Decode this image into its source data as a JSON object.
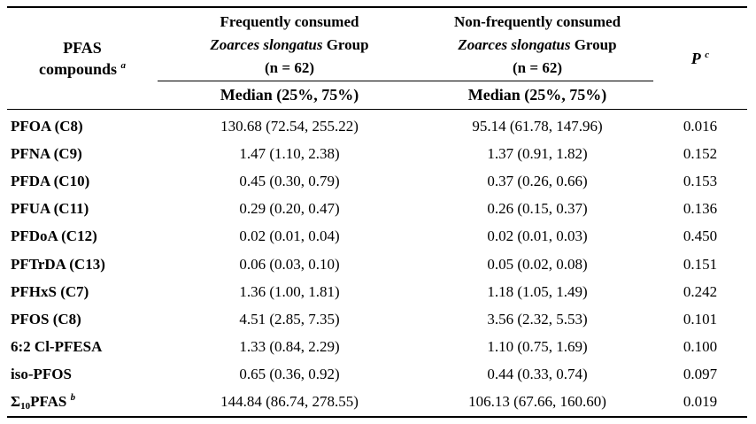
{
  "header": {
    "compounds_line1": "PFAS",
    "compounds_line2": "compounds",
    "compounds_sup": "a",
    "group1": {
      "line1": "Frequently consumed",
      "species": "Zoarces slongatus",
      "group_word": "Group",
      "n": "(n = 62)"
    },
    "group2": {
      "line1": "Non-frequently consumed",
      "species": "Zoarces slongatus",
      "group_word": "Group",
      "n": "(n = 62)"
    },
    "p_label": "P",
    "p_sup": "c",
    "median_label_1": "Median (25%, 75%)",
    "median_label_2": "Median (25%, 75%)"
  },
  "rows": [
    {
      "name": "PFOA (C8)",
      "freq": "130.68 (72.54, 255.22)",
      "nonfreq": "95.14 (61.78, 147.96)",
      "p": "0.016"
    },
    {
      "name": "PFNA (C9)",
      "freq": "1.47 (1.10, 2.38)",
      "nonfreq": "1.37 (0.91, 1.82)",
      "p": "0.152"
    },
    {
      "name": "PFDA (C10)",
      "freq": "0.45 (0.30, 0.79)",
      "nonfreq": "0.37 (0.26, 0.66)",
      "p": "0.153"
    },
    {
      "name": "PFUA (C11)",
      "freq": "0.29 (0.20, 0.47)",
      "nonfreq": "0.26 (0.15, 0.37)",
      "p": "0.136"
    },
    {
      "name": "PFDoA (C12)",
      "freq": "0.02 (0.01, 0.04)",
      "nonfreq": "0.02 (0.01, 0.03)",
      "p": "0.450"
    },
    {
      "name": "PFTrDA (C13)",
      "freq": "0.06 (0.03, 0.10)",
      "nonfreq": "0.05 (0.02, 0.08)",
      "p": "0.151"
    },
    {
      "name": "PFHxS (C7)",
      "freq": "1.36 (1.00, 1.81)",
      "nonfreq": "1.18 (1.05, 1.49)",
      "p": "0.242"
    },
    {
      "name": "PFOS (C8)",
      "freq": "4.51 (2.85, 7.35)",
      "nonfreq": "3.56 (2.32, 5.53)",
      "p": "0.101"
    },
    {
      "name": "6:2 Cl-PFESA",
      "freq": "1.33 (0.84, 2.29)",
      "nonfreq": "1.10 (0.75, 1.69)",
      "p": "0.100"
    },
    {
      "name": "iso-PFOS",
      "freq": "0.65 (0.36, 0.92)",
      "nonfreq": "0.44 (0.33, 0.74)",
      "p": "0.097"
    }
  ],
  "total_row": {
    "name_prefix": "Σ",
    "name_sub": "10",
    "name_suffix": "PFAS",
    "name_sup": "b",
    "freq": "144.84 (86.74, 278.55)",
    "nonfreq": "106.13 (67.66, 160.60)",
    "p": "0.019"
  }
}
